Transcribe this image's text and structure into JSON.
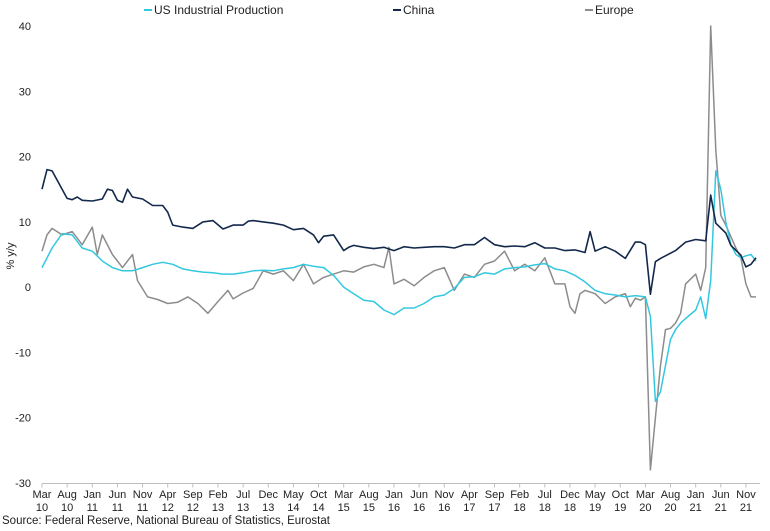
{
  "chart_data": {
    "type": "line",
    "title": "",
    "xlabel": "",
    "ylabel": "% y/y",
    "ylim": [
      -30,
      40
    ],
    "yticks": [
      -30,
      -20,
      -10,
      0,
      10,
      20,
      30,
      40
    ],
    "x_start": "2010-03",
    "x_end": "2021-12",
    "x_ticks": [
      {
        "month": "Mar",
        "year": "10",
        "index": 0
      },
      {
        "month": "Aug",
        "year": "10",
        "index": 5
      },
      {
        "month": "Jan",
        "year": "11",
        "index": 10
      },
      {
        "month": "Jun",
        "year": "11",
        "index": 15
      },
      {
        "month": "Nov",
        "year": "11",
        "index": 20
      },
      {
        "month": "Apr",
        "year": "12",
        "index": 25
      },
      {
        "month": "Sep",
        "year": "12",
        "index": 30
      },
      {
        "month": "Feb",
        "year": "13",
        "index": 35
      },
      {
        "month": "Jul",
        "year": "13",
        "index": 40
      },
      {
        "month": "Dec",
        "year": "13",
        "index": 45
      },
      {
        "month": "May",
        "year": "14",
        "index": 50
      },
      {
        "month": "Oct",
        "year": "14",
        "index": 55
      },
      {
        "month": "Mar",
        "year": "15",
        "index": 60
      },
      {
        "month": "Aug",
        "year": "15",
        "index": 65
      },
      {
        "month": "Jan",
        "year": "16",
        "index": 70
      },
      {
        "month": "Jun",
        "year": "16",
        "index": 75
      },
      {
        "month": "Nov",
        "year": "16",
        "index": 80
      },
      {
        "month": "Apr",
        "year": "17",
        "index": 85
      },
      {
        "month": "Sep",
        "year": "17",
        "index": 90
      },
      {
        "month": "Feb",
        "year": "18",
        "index": 95
      },
      {
        "month": "Jul",
        "year": "18",
        "index": 100
      },
      {
        "month": "Dec",
        "year": "18",
        "index": 105
      },
      {
        "month": "May",
        "year": "19",
        "index": 110
      },
      {
        "month": "Oct",
        "year": "19",
        "index": 115
      },
      {
        "month": "Mar",
        "year": "20",
        "index": 120
      },
      {
        "month": "Aug",
        "year": "20",
        "index": 125
      },
      {
        "month": "Jan",
        "year": "21",
        "index": 130
      },
      {
        "month": "Jun",
        "year": "21",
        "index": 135
      },
      {
        "month": "Nov",
        "year": "21",
        "index": 140
      }
    ],
    "legend_position": "top",
    "series": [
      {
        "name": "US Industrial Production",
        "color": "#33c8e0",
        "anchors": [
          [
            0,
            3
          ],
          [
            2,
            6
          ],
          [
            4,
            8.2
          ],
          [
            6,
            8
          ],
          [
            8,
            6
          ],
          [
            10,
            5.5
          ],
          [
            12,
            4
          ],
          [
            14,
            3
          ],
          [
            16,
            2.5
          ],
          [
            18,
            2.5
          ],
          [
            20,
            3
          ],
          [
            22,
            3.5
          ],
          [
            24,
            3.8
          ],
          [
            26,
            3.5
          ],
          [
            28,
            2.8
          ],
          [
            30,
            2.5
          ],
          [
            32,
            2.3
          ],
          [
            34,
            2.2
          ],
          [
            36,
            2
          ],
          [
            38,
            2
          ],
          [
            40,
            2.2
          ],
          [
            42,
            2.5
          ],
          [
            44,
            2.6
          ],
          [
            46,
            2.5
          ],
          [
            48,
            2.8
          ],
          [
            50,
            3
          ],
          [
            52,
            3.5
          ],
          [
            54,
            3.2
          ],
          [
            56,
            3
          ],
          [
            58,
            1.8
          ],
          [
            60,
            0
          ],
          [
            62,
            -1
          ],
          [
            64,
            -2
          ],
          [
            66,
            -2.2
          ],
          [
            68,
            -3.5
          ],
          [
            70,
            -4.2
          ],
          [
            72,
            -3.2
          ],
          [
            74,
            -3.2
          ],
          [
            76,
            -2.5
          ],
          [
            78,
            -1.5
          ],
          [
            80,
            -1.2
          ],
          [
            82,
            -0.2
          ],
          [
            84,
            1.5
          ],
          [
            86,
            1.6
          ],
          [
            88,
            2.2
          ],
          [
            90,
            2
          ],
          [
            92,
            2.8
          ],
          [
            94,
            3
          ],
          [
            96,
            3.1
          ],
          [
            98,
            3.4
          ],
          [
            100,
            3.6
          ],
          [
            102,
            2.8
          ],
          [
            104,
            2.5
          ],
          [
            106,
            1.8
          ],
          [
            108,
            0.8
          ],
          [
            110,
            -0.5
          ],
          [
            112,
            -1
          ],
          [
            114,
            -1.2
          ],
          [
            116,
            -1.5
          ],
          [
            118,
            -1.3
          ],
          [
            120,
            -1.5
          ],
          [
            121,
            -4.5
          ],
          [
            122,
            -17.5
          ],
          [
            123,
            -16
          ],
          [
            124,
            -12
          ],
          [
            125,
            -8
          ],
          [
            126,
            -6.5
          ],
          [
            127,
            -5.5
          ],
          [
            128,
            -4.8
          ],
          [
            130,
            -3.5
          ],
          [
            131,
            -1.5
          ],
          [
            132,
            -4.8
          ],
          [
            133,
            1
          ],
          [
            134,
            17.8
          ],
          [
            135,
            15
          ],
          [
            136,
            10
          ],
          [
            137,
            6.5
          ],
          [
            138,
            5
          ],
          [
            139,
            4.5
          ],
          [
            140,
            4.8
          ],
          [
            141,
            5
          ],
          [
            142,
            4
          ]
        ]
      },
      {
        "name": "China",
        "color": "#13294b",
        "anchors": [
          [
            0,
            15
          ],
          [
            1,
            18
          ],
          [
            2,
            17.8
          ],
          [
            4,
            15
          ],
          [
            5,
            13.6
          ],
          [
            6,
            13.4
          ],
          [
            7,
            13.8
          ],
          [
            8,
            13.3
          ],
          [
            10,
            13.2
          ],
          [
            12,
            13.5
          ],
          [
            13,
            15
          ],
          [
            14,
            14.8
          ],
          [
            15,
            13.3
          ],
          [
            16,
            13
          ],
          [
            17,
            15
          ],
          [
            18,
            13.8
          ],
          [
            20,
            13.5
          ],
          [
            22,
            12.5
          ],
          [
            24,
            12.5
          ],
          [
            25,
            11.5
          ],
          [
            26,
            9.5
          ],
          [
            28,
            9.2
          ],
          [
            30,
            9
          ],
          [
            32,
            10
          ],
          [
            34,
            10.2
          ],
          [
            36,
            8.9
          ],
          [
            38,
            9.5
          ],
          [
            40,
            9.5
          ],
          [
            41,
            10.1
          ],
          [
            42,
            10.2
          ],
          [
            44,
            10
          ],
          [
            46,
            9.8
          ],
          [
            48,
            9.5
          ],
          [
            50,
            8.8
          ],
          [
            52,
            9
          ],
          [
            54,
            8
          ],
          [
            55,
            6.8
          ],
          [
            56,
            7.8
          ],
          [
            58,
            8
          ],
          [
            60,
            5.6
          ],
          [
            61,
            6.1
          ],
          [
            62,
            6.4
          ],
          [
            64,
            6.1
          ],
          [
            66,
            5.9
          ],
          [
            68,
            6.1
          ],
          [
            70,
            5.6
          ],
          [
            72,
            6.2
          ],
          [
            74,
            6
          ],
          [
            76,
            6.1
          ],
          [
            78,
            6.2
          ],
          [
            80,
            6.2
          ],
          [
            82,
            6
          ],
          [
            84,
            6.5
          ],
          [
            86,
            6.5
          ],
          [
            88,
            7.6
          ],
          [
            90,
            6.5
          ],
          [
            92,
            6.2
          ],
          [
            94,
            6.3
          ],
          [
            96,
            6.2
          ],
          [
            98,
            6.8
          ],
          [
            100,
            6
          ],
          [
            102,
            6
          ],
          [
            104,
            5.6
          ],
          [
            106,
            5.7
          ],
          [
            108,
            5.3
          ],
          [
            109,
            8.5
          ],
          [
            110,
            5.5
          ],
          [
            112,
            6.2
          ],
          [
            114,
            5.5
          ],
          [
            116,
            4.4
          ],
          [
            118,
            6.9
          ],
          [
            119,
            6.9
          ],
          [
            120,
            6.5
          ],
          [
            121,
            -1.1
          ],
          [
            122,
            3.9
          ],
          [
            123,
            4.4
          ],
          [
            124,
            4.8
          ],
          [
            126,
            5.6
          ],
          [
            128,
            6.9
          ],
          [
            130,
            7.3
          ],
          [
            132,
            7.1
          ],
          [
            133,
            14.1
          ],
          [
            134,
            9.8
          ],
          [
            136,
            8.3
          ],
          [
            137,
            6.4
          ],
          [
            139,
            4.9
          ],
          [
            140,
            3.1
          ],
          [
            141,
            3.5
          ],
          [
            142,
            4.5
          ]
        ]
      },
      {
        "name": "Europe",
        "color": "#8c8c8c",
        "anchors": [
          [
            0,
            5.5
          ],
          [
            1,
            8
          ],
          [
            2,
            9
          ],
          [
            4,
            8
          ],
          [
            6,
            8.5
          ],
          [
            8,
            6.5
          ],
          [
            10,
            9.2
          ],
          [
            11,
            5
          ],
          [
            12,
            8
          ],
          [
            14,
            5
          ],
          [
            16,
            3
          ],
          [
            18,
            5
          ],
          [
            19,
            1
          ],
          [
            21,
            -1.5
          ],
          [
            23,
            -1.9
          ],
          [
            25,
            -2.5
          ],
          [
            27,
            -2.3
          ],
          [
            29,
            -1.5
          ],
          [
            31,
            -2.5
          ],
          [
            33,
            -4
          ],
          [
            35,
            -2.2
          ],
          [
            37,
            -0.5
          ],
          [
            38,
            -1.8
          ],
          [
            40,
            -0.9
          ],
          [
            42,
            -0.2
          ],
          [
            44,
            2.5
          ],
          [
            46,
            2
          ],
          [
            48,
            2.5
          ],
          [
            50,
            1
          ],
          [
            52,
            3.5
          ],
          [
            54,
            0.5
          ],
          [
            56,
            1.5
          ],
          [
            58,
            2
          ],
          [
            60,
            2.5
          ],
          [
            62,
            2.3
          ],
          [
            64,
            3.1
          ],
          [
            66,
            3.5
          ],
          [
            68,
            3
          ],
          [
            69,
            6.1
          ],
          [
            70,
            0.5
          ],
          [
            72,
            1.2
          ],
          [
            74,
            0.2
          ],
          [
            76,
            1.5
          ],
          [
            78,
            2.5
          ],
          [
            80,
            3
          ],
          [
            82,
            -0.5
          ],
          [
            84,
            2
          ],
          [
            86,
            1.5
          ],
          [
            88,
            3.5
          ],
          [
            90,
            4
          ],
          [
            92,
            5.5
          ],
          [
            94,
            2.5
          ],
          [
            96,
            3.5
          ],
          [
            98,
            2.5
          ],
          [
            100,
            4.5
          ],
          [
            102,
            0.5
          ],
          [
            104,
            0.5
          ],
          [
            105,
            -3
          ],
          [
            106,
            -4
          ],
          [
            107,
            -1
          ],
          [
            108,
            -0.5
          ],
          [
            110,
            -1
          ],
          [
            112,
            -2.5
          ],
          [
            114,
            -1.5
          ],
          [
            116,
            -1
          ],
          [
            117,
            -3
          ],
          [
            118,
            -1.7
          ],
          [
            119,
            -2
          ],
          [
            120,
            -1.5
          ],
          [
            121,
            -28
          ],
          [
            122,
            -20
          ],
          [
            123,
            -12
          ],
          [
            124,
            -6.5
          ],
          [
            125,
            -6.3
          ],
          [
            126,
            -5.5
          ],
          [
            127,
            -4
          ],
          [
            128,
            0.5
          ],
          [
            130,
            2
          ],
          [
            131,
            -0.5
          ],
          [
            132,
            3
          ],
          [
            133,
            40
          ],
          [
            134,
            21
          ],
          [
            135,
            11
          ],
          [
            136,
            9.5
          ],
          [
            138,
            6
          ],
          [
            139,
            4.5
          ],
          [
            140,
            0.5
          ],
          [
            141,
            -1.5
          ],
          [
            142,
            -1.5
          ]
        ]
      }
    ]
  },
  "source": "Source: Federal Reserve, National Bureau of Statistics, Eurostat"
}
